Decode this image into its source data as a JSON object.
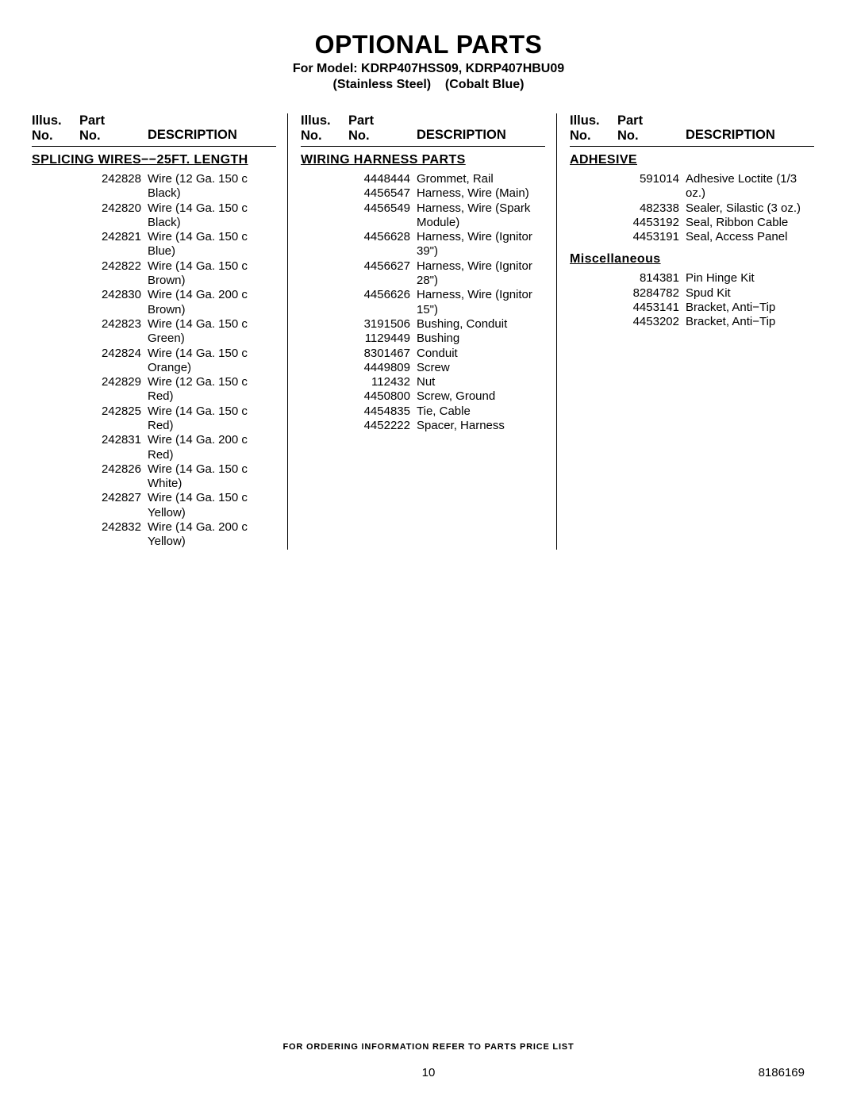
{
  "title": "OPTIONAL PARTS",
  "subtitle_line1": "For Model: KDRP407HSS09, KDRP407HBU09",
  "subtitle_line2_left": "(Stainless Steel)",
  "subtitle_line2_right": "(Cobalt Blue)",
  "headers": {
    "illus_top": "Illus.",
    "illus_bot": "No.",
    "part_top": "Part",
    "part_bot": "No.",
    "desc": "DESCRIPTION"
  },
  "col1": {
    "section": "SPLICING WIRES−−25FT. LENGTH",
    "rows": [
      {
        "part": "242828",
        "desc": "Wire (12 Ga. 150 c Black)"
      },
      {
        "part": "242820",
        "desc": "Wire (14 Ga. 150 c Black)"
      },
      {
        "part": "242821",
        "desc": "Wire (14 Ga. 150 c Blue)"
      },
      {
        "part": "242822",
        "desc": "Wire (14 Ga. 150 c Brown)"
      },
      {
        "part": "242830",
        "desc": "Wire (14 Ga. 200 c Brown)"
      },
      {
        "part": "242823",
        "desc": "Wire (14 Ga. 150 c Green)"
      },
      {
        "part": "242824",
        "desc": "Wire (14 Ga. 150 c Orange)"
      },
      {
        "part": "242829",
        "desc": "Wire (12 Ga. 150 c Red)"
      },
      {
        "part": "242825",
        "desc": "Wire (14 Ga. 150 c Red)"
      },
      {
        "part": "242831",
        "desc": "Wire (14 Ga. 200 c Red)"
      },
      {
        "part": "242826",
        "desc": "Wire (14 Ga. 150 c White)"
      },
      {
        "part": "242827",
        "desc": "Wire (14 Ga. 150 c Yellow)"
      },
      {
        "part": "242832",
        "desc": "Wire (14 Ga. 200 c Yellow)"
      }
    ]
  },
  "col2": {
    "section": "WIRING HARNESS PARTS",
    "rows": [
      {
        "part": "4448444",
        "desc": "Grommet, Rail"
      },
      {
        "part": "4456547",
        "desc": "Harness, Wire (Main)"
      },
      {
        "part": "4456549",
        "desc": "Harness, Wire (Spark Module)"
      },
      {
        "part": "4456628",
        "desc": "Harness, Wire (Ignitor 39\")"
      },
      {
        "part": "4456627",
        "desc": "Harness, Wire (Ignitor 28\")"
      },
      {
        "part": "4456626",
        "desc": "Harness, Wire (Ignitor 15\")"
      },
      {
        "part": "3191506",
        "desc": "Bushing, Conduit"
      },
      {
        "part": "1129449",
        "desc": "Bushing"
      },
      {
        "part": "8301467",
        "desc": "Conduit"
      },
      {
        "part": "4449809",
        "desc": "Screw"
      },
      {
        "part": "112432",
        "desc": "Nut"
      },
      {
        "part": "4450800",
        "desc": "Screw, Ground"
      },
      {
        "part": "4454835",
        "desc": "Tie, Cable"
      },
      {
        "part": "4452222",
        "desc": "Spacer, Harness"
      }
    ]
  },
  "col3": {
    "section_a": "ADHESIVE",
    "rows_a": [
      {
        "part": "591014",
        "desc": "Adhesive Loctite (1/3 oz.)"
      },
      {
        "part": "482338",
        "desc": "Sealer, Silastic (3 oz.)"
      },
      {
        "part": "4453192",
        "desc": "Seal, Ribbon Cable"
      },
      {
        "part": "4453191",
        "desc": "Seal, Access Panel"
      }
    ],
    "section_b": "Miscellaneous",
    "rows_b": [
      {
        "part": "814381",
        "desc": "Pin Hinge Kit"
      },
      {
        "part": "8284782",
        "desc": "Spud Kit"
      },
      {
        "part": "4453141",
        "desc": "Bracket, Anti−Tip"
      },
      {
        "part": "4453202",
        "desc": "Bracket, Anti−Tip"
      }
    ]
  },
  "footer": {
    "ordering": "FOR ORDERING INFORMATION REFER TO PARTS PRICE LIST",
    "page": "10",
    "docnum": "8186169"
  }
}
